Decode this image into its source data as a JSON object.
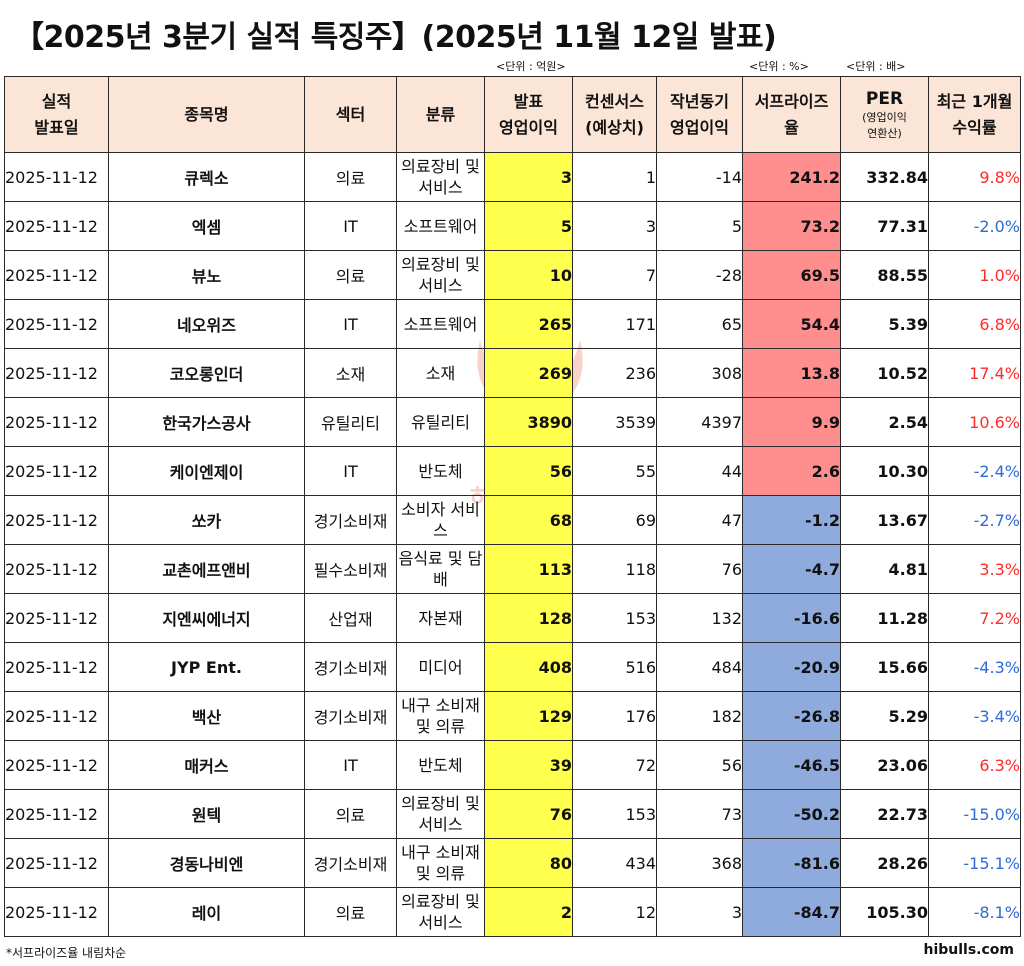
{
  "title": "【2025년 3분기 실적 특징주】(2025년 11월 12일 발표)",
  "units": {
    "operating_profit": "<단위 : 억원>",
    "surprise": "<단위 : %>",
    "per": "<단위 : 배>"
  },
  "headers": {
    "date": [
      "실적",
      "발표일"
    ],
    "name": "종목명",
    "sector": "섹터",
    "classification": "분류",
    "announced": [
      "발표",
      "영업이익"
    ],
    "consensus": [
      "컨센서스",
      "(예상치)"
    ],
    "yoy": [
      "작년동기",
      "영업이익"
    ],
    "surprise": [
      "서프라이즈",
      "율"
    ],
    "per": [
      "PER",
      "(영업이익",
      "연환산)"
    ],
    "return": [
      "최근 1개월",
      "수익률"
    ]
  },
  "rows": [
    {
      "date": "2025-11-12",
      "name": "큐렉소",
      "sector": "의료",
      "classification": "의료장비 및 서비스",
      "announced": "3",
      "consensus": "1",
      "yoy": "-14",
      "surprise": "241.2",
      "per": "332.84",
      "return": "9.8%"
    },
    {
      "date": "2025-11-12",
      "name": "엑셈",
      "sector": "IT",
      "classification": "소프트웨어",
      "announced": "5",
      "consensus": "3",
      "yoy": "5",
      "surprise": "73.2",
      "per": "77.31",
      "return": "-2.0%"
    },
    {
      "date": "2025-11-12",
      "name": "뷰노",
      "sector": "의료",
      "classification": "의료장비 및 서비스",
      "announced": "10",
      "consensus": "7",
      "yoy": "-28",
      "surprise": "69.5",
      "per": "88.55",
      "return": "1.0%"
    },
    {
      "date": "2025-11-12",
      "name": "네오위즈",
      "sector": "IT",
      "classification": "소프트웨어",
      "announced": "265",
      "consensus": "171",
      "yoy": "65",
      "surprise": "54.4",
      "per": "5.39",
      "return": "6.8%"
    },
    {
      "date": "2025-11-12",
      "name": "코오롱인더",
      "sector": "소재",
      "classification": "소재",
      "announced": "269",
      "consensus": "236",
      "yoy": "308",
      "surprise": "13.8",
      "per": "10.52",
      "return": "17.4%"
    },
    {
      "date": "2025-11-12",
      "name": "한국가스공사",
      "sector": "유틸리티",
      "classification": "유틸리티",
      "announced": "3890",
      "consensus": "3539",
      "yoy": "4397",
      "surprise": "9.9",
      "per": "2.54",
      "return": "10.6%"
    },
    {
      "date": "2025-11-12",
      "name": "케이엔제이",
      "sector": "IT",
      "classification": "반도체",
      "announced": "56",
      "consensus": "55",
      "yoy": "44",
      "surprise": "2.6",
      "per": "10.30",
      "return": "-2.4%"
    },
    {
      "date": "2025-11-12",
      "name": "쏘카",
      "sector": "경기소비재",
      "classification": "소비자 서비스",
      "announced": "68",
      "consensus": "69",
      "yoy": "47",
      "surprise": "-1.2",
      "per": "13.67",
      "return": "-2.7%"
    },
    {
      "date": "2025-11-12",
      "name": "교촌에프앤비",
      "sector": "필수소비재",
      "classification": "음식료 및 담배",
      "announced": "113",
      "consensus": "118",
      "yoy": "76",
      "surprise": "-4.7",
      "per": "4.81",
      "return": "3.3%"
    },
    {
      "date": "2025-11-12",
      "name": "지엔씨에너지",
      "sector": "산업재",
      "classification": "자본재",
      "announced": "128",
      "consensus": "153",
      "yoy": "132",
      "surprise": "-16.6",
      "per": "11.28",
      "return": "7.2%"
    },
    {
      "date": "2025-11-12",
      "name": "JYP Ent.",
      "sector": "경기소비재",
      "classification": "미디어",
      "announced": "408",
      "consensus": "516",
      "yoy": "484",
      "surprise": "-20.9",
      "per": "15.66",
      "return": "-4.3%"
    },
    {
      "date": "2025-11-12",
      "name": "백산",
      "sector": "경기소비재",
      "classification": "내구 소비재 및 의류",
      "announced": "129",
      "consensus": "176",
      "yoy": "182",
      "surprise": "-26.8",
      "per": "5.29",
      "return": "-3.4%"
    },
    {
      "date": "2025-11-12",
      "name": "매커스",
      "sector": "IT",
      "classification": "반도체",
      "announced": "39",
      "consensus": "72",
      "yoy": "56",
      "surprise": "-46.5",
      "per": "23.06",
      "return": "6.3%"
    },
    {
      "date": "2025-11-12",
      "name": "원텍",
      "sector": "의료",
      "classification": "의료장비 및 서비스",
      "announced": "76",
      "consensus": "153",
      "yoy": "73",
      "surprise": "-50.2",
      "per": "22.73",
      "return": "-15.0%"
    },
    {
      "date": "2025-11-12",
      "name": "경동나비엔",
      "sector": "경기소비재",
      "classification": "내구 소비재 및 의류",
      "announced": "80",
      "consensus": "434",
      "yoy": "368",
      "surprise": "-81.6",
      "per": "28.26",
      "return": "-15.1%"
    },
    {
      "date": "2025-11-12",
      "name": "레이",
      "sector": "의료",
      "classification": "의료장비 및 서비스",
      "announced": "2",
      "consensus": "12",
      "yoy": "3",
      "surprise": "-84.7",
      "per": "105.30",
      "return": "-8.1%"
    }
  ],
  "footnote": "*서프라이즈율 내림차순",
  "source": "hibulls.com",
  "watermark_text": "하이불스",
  "colors": {
    "header_bg": "#fbe5d6",
    "announced_bg": "#ffff4d",
    "surprise_positive_bg": "#ff8f8f",
    "surprise_negative_bg": "#8faadc",
    "return_up": "#ff2b2b",
    "return_down": "#2e6bd6"
  }
}
